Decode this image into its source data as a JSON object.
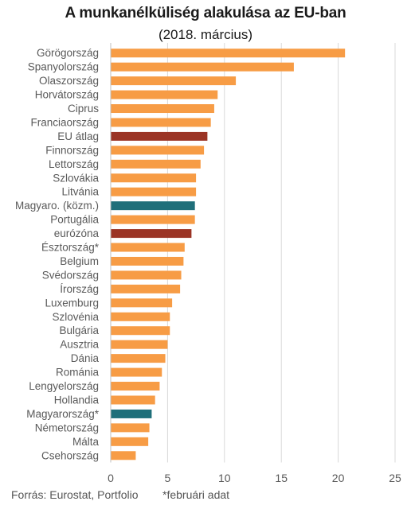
{
  "title": "A munkanélküliség alakulása az EU-ban",
  "subtitle": "(2018. március)",
  "footer": {
    "source": "Forrás: Eurostat, Portfolio",
    "note": "*februári adat"
  },
  "colors": {
    "default": "#f79c45",
    "average": "#9b3425",
    "hungary": "#1f6f7a",
    "grid": "#d9d9d9"
  },
  "chart_data": {
    "type": "bar",
    "orientation": "horizontal",
    "title": "A munkanélküliség alakulása az EU-ban",
    "subtitle": "(2018. március)",
    "xlim": [
      0,
      25
    ],
    "xticks": [
      0,
      5,
      10,
      15,
      20,
      25
    ],
    "grid": true,
    "categories": [
      "Görögország",
      "Spanyolország",
      "Olaszország",
      "Horvátország",
      "Ciprus",
      "Franciaország",
      "EU átlag",
      "Finnország",
      "Lettország",
      "Szlovákia",
      "Litvánia",
      "Magyaro. (közm.)",
      "Portugália",
      "eurózóna",
      "Észtország*",
      "Belgium",
      "Svédország",
      "Írország",
      "Luxemburg",
      "Szlovénia",
      "Bulgária",
      "Ausztria",
      "Dánia",
      "Románia",
      "Lengyelország",
      "Hollandia",
      "Magyarország*",
      "Németország",
      "Málta",
      "Csehország"
    ],
    "values": [
      20.6,
      16.1,
      11.0,
      9.4,
      9.1,
      8.8,
      8.5,
      8.2,
      7.9,
      7.5,
      7.5,
      7.4,
      7.4,
      7.1,
      6.5,
      6.4,
      6.2,
      6.1,
      5.4,
      5.2,
      5.2,
      5.0,
      4.8,
      4.5,
      4.3,
      3.9,
      3.6,
      3.4,
      3.3,
      2.2
    ],
    "bar_colors": [
      "default",
      "default",
      "default",
      "default",
      "default",
      "default",
      "average",
      "default",
      "default",
      "default",
      "default",
      "hungary",
      "default",
      "average",
      "default",
      "default",
      "default",
      "default",
      "default",
      "default",
      "default",
      "default",
      "default",
      "default",
      "default",
      "default",
      "hungary",
      "default",
      "default",
      "default"
    ]
  }
}
